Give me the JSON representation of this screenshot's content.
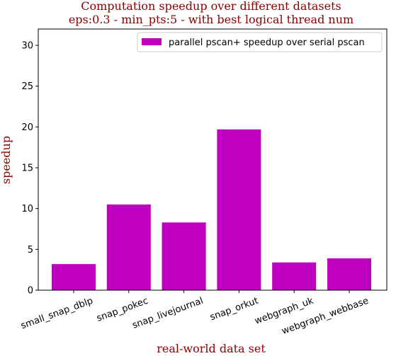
{
  "chart_data": {
    "type": "bar",
    "title_lines": [
      "Computation speedup over different datasets",
      "eps:0.3 - min_pts:5 - with best logical thread num"
    ],
    "xlabel": "real-world data set",
    "ylabel": "speedup",
    "categories": [
      "small_snap_dblp",
      "snap_pokec",
      "snap_livejournal",
      "snap_orkut",
      "webgraph_uk",
      "webgraph_webbase"
    ],
    "series": [
      {
        "name": "parallel pscan+ speedup over serial pscan",
        "values": [
          3.2,
          10.5,
          8.3,
          19.7,
          3.4,
          3.9
        ]
      }
    ],
    "ylim": [
      0,
      32
    ],
    "yticks": [
      0,
      5,
      10,
      15,
      20,
      25,
      30
    ],
    "bar_color": "#bf00bf",
    "legend_position": "top-right",
    "grid": false,
    "xtick_rotation": -20
  }
}
